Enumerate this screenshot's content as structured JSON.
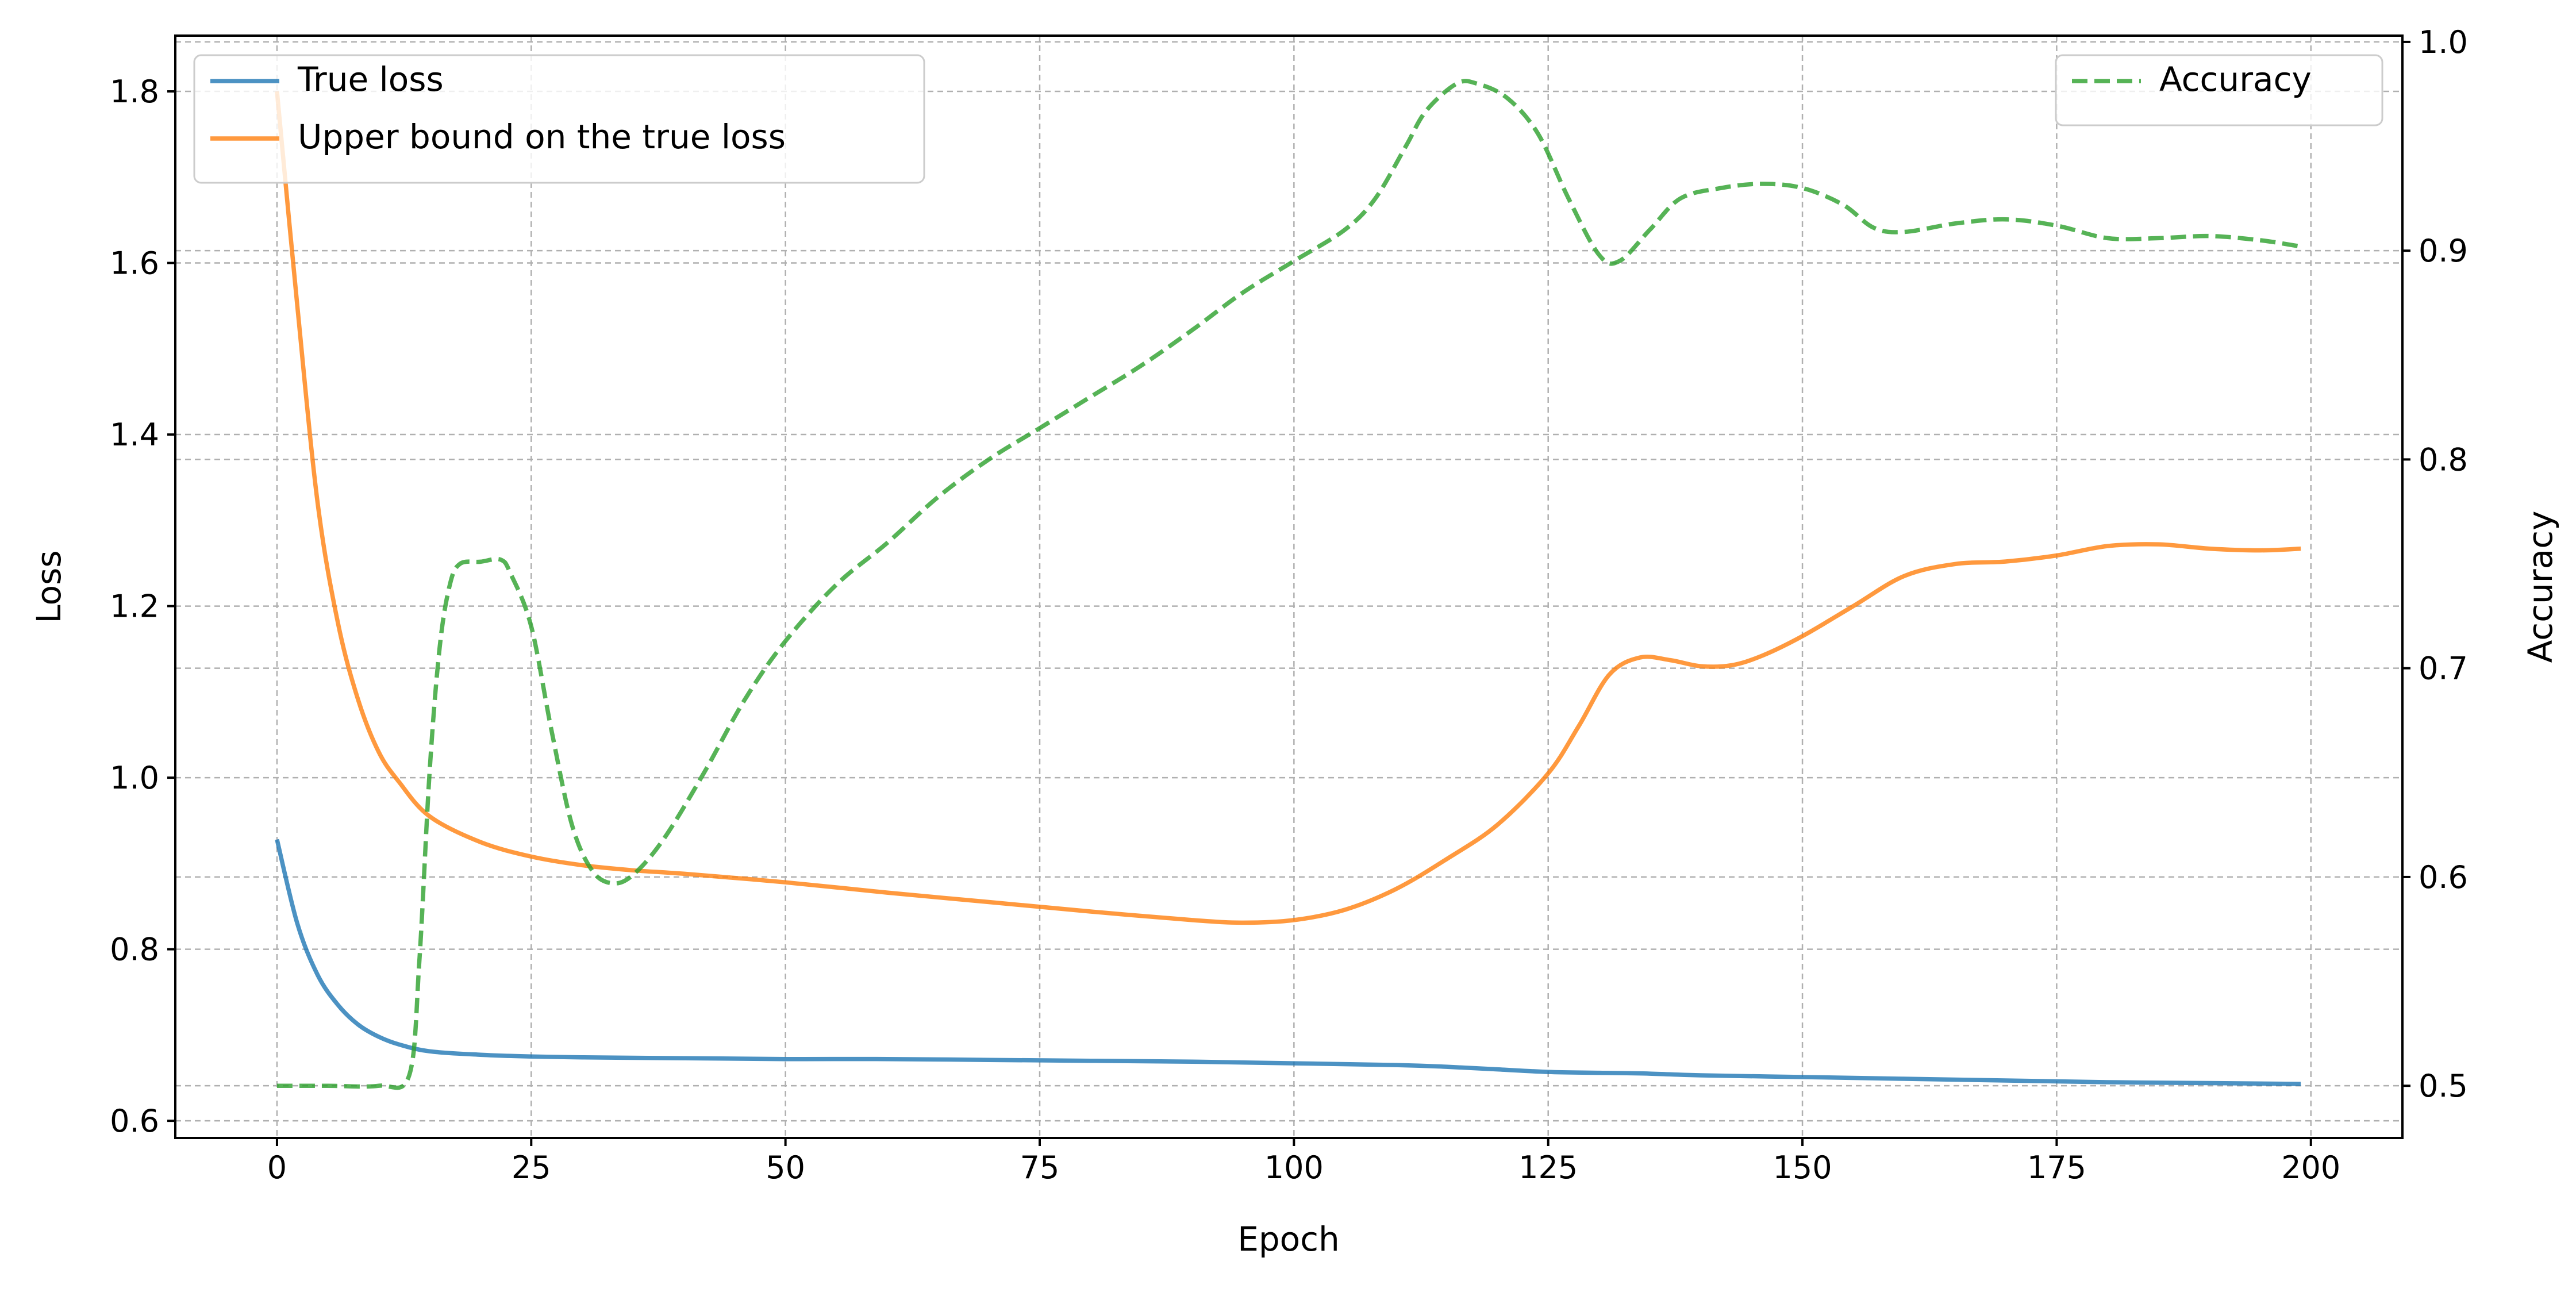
{
  "chart_data": {
    "type": "line",
    "xlabel": "Epoch",
    "ylabel_left": "Loss",
    "ylabel_right": "Accuracy",
    "xlim": [
      -10,
      209
    ],
    "ylim_left": [
      0.58,
      1.865
    ],
    "ylim_right": [
      0.475,
      1.003
    ],
    "xticks": [
      0,
      25,
      50,
      75,
      100,
      125,
      150,
      175,
      200
    ],
    "yticks_left": [
      0.6,
      0.8,
      1.0,
      1.2,
      1.4,
      1.6,
      1.8
    ],
    "yticks_right": [
      0.5,
      0.6,
      0.7,
      0.8,
      0.9,
      1.0
    ],
    "xtick_labels": [
      "0",
      "25",
      "50",
      "75",
      "100",
      "125",
      "150",
      "175",
      "200"
    ],
    "ytick_labels_left": [
      "0.6",
      "0.8",
      "1.0",
      "1.2",
      "1.4",
      "1.6",
      "1.8"
    ],
    "ytick_labels_right": [
      "0.5",
      "0.6",
      "0.7",
      "0.8",
      "0.9",
      "1.0"
    ],
    "grid": true,
    "legend_left_position": "upper-left",
    "legend_right_position": "upper-right",
    "series": [
      {
        "name": "True loss",
        "axis": "left",
        "color": "#1f77b4",
        "style": "solid",
        "x": [
          0,
          2,
          4,
          6,
          8,
          10,
          12,
          15,
          20,
          25,
          30,
          40,
          50,
          60,
          70,
          80,
          90,
          100,
          110,
          115,
          120,
          125,
          130,
          135,
          140,
          150,
          160,
          170,
          180,
          190,
          199
        ],
        "y": [
          0.928,
          0.83,
          0.77,
          0.735,
          0.712,
          0.698,
          0.689,
          0.681,
          0.677,
          0.675,
          0.674,
          0.673,
          0.672,
          0.672,
          0.671,
          0.67,
          0.669,
          0.667,
          0.665,
          0.663,
          0.66,
          0.657,
          0.656,
          0.655,
          0.653,
          0.651,
          0.649,
          0.647,
          0.645,
          0.644,
          0.643
        ]
      },
      {
        "name": "Upper bound on the true loss",
        "axis": "left",
        "color": "#ff7f0e",
        "style": "solid",
        "x": [
          0,
          2,
          4,
          6,
          8,
          10,
          12,
          15,
          20,
          25,
          30,
          35,
          40,
          50,
          60,
          70,
          80,
          90,
          95,
          100,
          105,
          110,
          115,
          120,
          125,
          128,
          131,
          134,
          137,
          140,
          143,
          146,
          150,
          155,
          160,
          165,
          170,
          175,
          180,
          185,
          190,
          195,
          199
        ],
        "y": [
          1.8,
          1.55,
          1.32,
          1.18,
          1.09,
          1.03,
          0.995,
          0.955,
          0.925,
          0.908,
          0.898,
          0.892,
          0.888,
          0.878,
          0.866,
          0.855,
          0.844,
          0.834,
          0.831,
          0.834,
          0.846,
          0.87,
          0.905,
          0.945,
          1.005,
          1.06,
          1.12,
          1.14,
          1.137,
          1.13,
          1.131,
          1.142,
          1.165,
          1.2,
          1.235,
          1.249,
          1.252,
          1.259,
          1.27,
          1.272,
          1.267,
          1.265,
          1.267
        ]
      },
      {
        "name": "Accuracy",
        "axis": "right",
        "color": "#2ca02c",
        "style": "dashed",
        "x": [
          0,
          5,
          10,
          13,
          14,
          15,
          16,
          17,
          18,
          20,
          22,
          23,
          25,
          27,
          29,
          31,
          33,
          35,
          38,
          42,
          46,
          50,
          55,
          60,
          65,
          70,
          75,
          80,
          85,
          90,
          95,
          100,
          105,
          108,
          111,
          113,
          116,
          118,
          121,
          124,
          127,
          130,
          132,
          135,
          138,
          142,
          146,
          150,
          154,
          157,
          160,
          165,
          170,
          175,
          180,
          185,
          190,
          195,
          199
        ],
        "y": [
          0.5,
          0.5,
          0.5,
          0.505,
          0.56,
          0.65,
          0.71,
          0.74,
          0.75,
          0.751,
          0.752,
          0.745,
          0.72,
          0.67,
          0.625,
          0.603,
          0.597,
          0.601,
          0.618,
          0.65,
          0.685,
          0.713,
          0.74,
          0.76,
          0.782,
          0.8,
          0.815,
          0.83,
          0.845,
          0.862,
          0.88,
          0.895,
          0.91,
          0.925,
          0.95,
          0.967,
          0.98,
          0.98,
          0.973,
          0.956,
          0.925,
          0.898,
          0.895,
          0.91,
          0.925,
          0.93,
          0.932,
          0.93,
          0.922,
          0.911,
          0.909,
          0.913,
          0.915,
          0.912,
          0.906,
          0.906,
          0.907,
          0.905,
          0.902
        ]
      }
    ]
  }
}
